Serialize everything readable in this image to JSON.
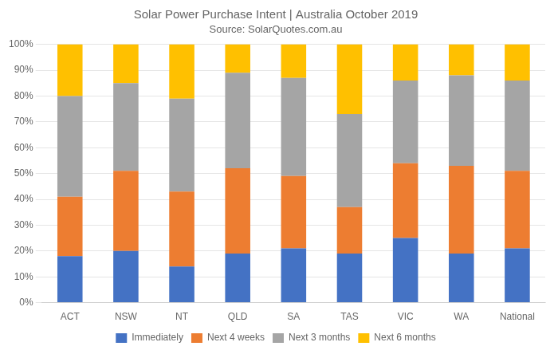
{
  "chart_data": {
    "type": "bar",
    "stacked": true,
    "title": "Solar Power Purchase Intent | Australia October 2019",
    "subtitle": "Source: SolarQuotes.com.au",
    "categories": [
      "ACT",
      "NSW",
      "NT",
      "QLD",
      "SA",
      "TAS",
      "VIC",
      "WA",
      "National"
    ],
    "series": [
      {
        "name": "Immediately",
        "color": "#4472C4",
        "values": [
          18,
          20,
          14,
          19,
          21,
          19,
          25,
          19,
          21
        ]
      },
      {
        "name": "Next 4 weeks",
        "color": "#ED7D31",
        "values": [
          23,
          31,
          29,
          33,
          28,
          18,
          29,
          34,
          30
        ]
      },
      {
        "name": "Next 3 months",
        "color": "#A5A5A5",
        "values": [
          39,
          34,
          36,
          37,
          38,
          36,
          32,
          35,
          35
        ]
      },
      {
        "name": "Next 6 months",
        "color": "#FFC000",
        "values": [
          20,
          15,
          21,
          11,
          13,
          27,
          14,
          12,
          14
        ]
      }
    ],
    "ylim": [
      0,
      100
    ],
    "yticks": [
      {
        "value": 0,
        "label": "0%"
      },
      {
        "value": 10,
        "label": "10%"
      },
      {
        "value": 20,
        "label": "20%"
      },
      {
        "value": 30,
        "label": "30%"
      },
      {
        "value": 40,
        "label": "40%"
      },
      {
        "value": 50,
        "label": "50%"
      },
      {
        "value": 60,
        "label": "60%"
      },
      {
        "value": 70,
        "label": "70%"
      },
      {
        "value": 80,
        "label": "80%"
      },
      {
        "value": 90,
        "label": "90%"
      },
      {
        "value": 100,
        "label": "100%"
      }
    ],
    "grid": true,
    "legend": "bottom"
  }
}
